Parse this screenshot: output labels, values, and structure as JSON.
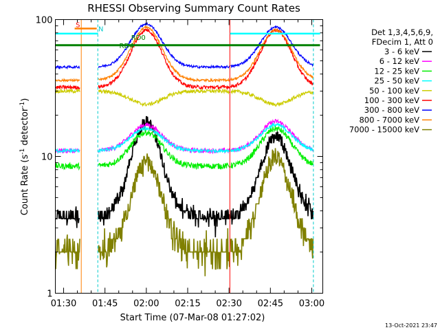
{
  "chart_data": {
    "type": "line",
    "title": "RHESSI Observing Summary Count Rates",
    "xlabel": "Start Time (07-Mar-08 01:27:02)",
    "ylabel_main": "Count Rate (s",
    "ylabel_sup1": "-1",
    "ylabel_mid": " detector",
    "ylabel_sup2": "-1",
    "ylabel_end": ")",
    "y_scale": "log",
    "ylim": [
      1,
      100
    ],
    "xlim": [
      87.0,
      184.0
    ],
    "x_ticks": [
      {
        "t": 90,
        "label": "01:30"
      },
      {
        "t": 105,
        "label": "01:45"
      },
      {
        "t": 120,
        "label": "02:00"
      },
      {
        "t": 135,
        "label": "02:15"
      },
      {
        "t": 150,
        "label": "02:30"
      },
      {
        "t": 165,
        "label": "02:45"
      },
      {
        "t": 180,
        "label": "03:00"
      }
    ],
    "y_tick_labels": [
      {
        "v": 1,
        "label": "1"
      },
      {
        "v": 10,
        "label": "10"
      },
      {
        "v": 100,
        "label": "100"
      }
    ],
    "legend_header": [
      "Det 1,3,4,5,6,9,",
      "FDecim 1, Att 0"
    ],
    "legend_placement": "right",
    "series": [
      {
        "name": "3 - 6 keV",
        "color": "#000000",
        "base": 3.6,
        "peak": 18,
        "pk2": 14,
        "jit": 0.1
      },
      {
        "name": "6 - 12 keV",
        "color": "#ff00ff",
        "base": 11,
        "peak": 17,
        "pk2": 18,
        "jit": 0.04
      },
      {
        "name": "12 - 25 keV",
        "color": "#00ee00",
        "base": 8.5,
        "peak": 15,
        "pk2": 16,
        "jit": 0.05
      },
      {
        "name": "25 - 50 keV",
        "color": "#00ffff",
        "base": 11,
        "peak": 16,
        "pk2": 17,
        "jit": 0.03
      },
      {
        "name": "50 - 100 keV",
        "color": "#cccc00",
        "base": 30,
        "peak": 24,
        "pk2": 24,
        "jit": 0.03
      },
      {
        "name": "100 - 300 keV",
        "color": "#ff0000",
        "base": 32,
        "peak": 84,
        "pk2": 84,
        "jit": 0.03
      },
      {
        "name": "300 - 800 keV",
        "color": "#0000ff",
        "base": 45,
        "peak": 93,
        "pk2": 88,
        "jit": 0.02
      },
      {
        "name": "800 - 7000 keV",
        "color": "#ff8000",
        "base": 36,
        "peak": 88,
        "pk2": 84,
        "jit": 0.02
      },
      {
        "name": "7000 - 15000 keV",
        "color": "#808000",
        "base": 2,
        "peak": 9,
        "pk2": 10,
        "jit": 0.15
      }
    ],
    "annotations": [
      {
        "text": "RD4",
        "t": 110.2,
        "v": 62,
        "color": "#008000"
      },
      {
        "text": "RD0",
        "t": 114.5,
        "v": 71,
        "color": "#008000"
      },
      {
        "text": "N",
        "t": 102.6,
        "v": 82,
        "color": "#00cccc"
      },
      {
        "text": "S",
        "t": 94.4,
        "v": 88,
        "color": "#ff0000"
      }
    ],
    "grid": false
  },
  "timestamp": "13-Oct-2021 23:47"
}
